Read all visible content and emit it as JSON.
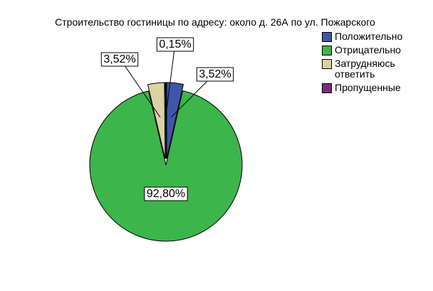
{
  "chart_data": {
    "type": "pie",
    "title": "Строительство гостиницы по адресу: около д. 26А по ул. Пожарского",
    "categories": [
      "Положительно",
      "Отрицательно",
      "Затрудняюсь ответить",
      "Пропущенные"
    ],
    "values": [
      3.52,
      92.8,
      3.52,
      0.15
    ],
    "value_labels": [
      "3,52%",
      "92,80%",
      "3,52%",
      "0,15%"
    ],
    "colors": [
      "#3f57ab",
      "#3cb54a",
      "#d9d2a3",
      "#7b2c7e"
    ],
    "legend": "right"
  }
}
